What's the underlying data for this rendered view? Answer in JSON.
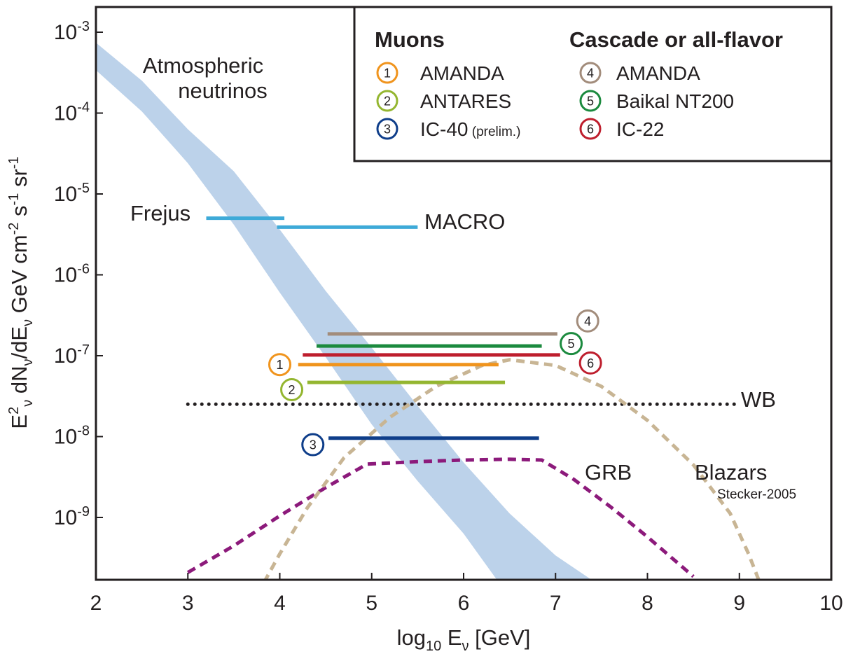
{
  "chart_data": {
    "type": "line",
    "xlabel": "log10 Eν [GeV]",
    "xlabel_parts": {
      "base": "log",
      "sub": "10",
      "mid": " E",
      "nu": "ν",
      "tail": " [GeV]"
    },
    "ylabel": "E²ν dNν/dEν GeV cm⁻² s⁻¹ sr⁻¹",
    "ylabel_parts": [
      "E",
      "2",
      "ν",
      " dN",
      "ν",
      "/dE",
      "ν",
      " GeV cm",
      "-2",
      " s",
      "-1",
      " sr",
      "-1"
    ],
    "xlim": [
      2,
      10
    ],
    "ylim_log10": [
      -9.8,
      -3
    ],
    "y_scale": "log",
    "grid": false,
    "x_ticks": [
      2,
      3,
      4,
      5,
      6,
      7,
      8,
      9,
      10
    ],
    "x_tick_labels": [
      "2",
      "3",
      "4",
      "5",
      "6",
      "7",
      "8",
      "9",
      "10"
    ],
    "y_ticks": [
      {
        "exp": -3,
        "base": "10",
        "sup": "-3"
      },
      {
        "exp": -4,
        "base": "10",
        "sup": "-4"
      },
      {
        "exp": -5,
        "base": "10",
        "sup": "-5"
      },
      {
        "exp": -6,
        "base": "10",
        "sup": "-6"
      },
      {
        "exp": -7,
        "base": "10",
        "sup": "-7"
      },
      {
        "exp": -8,
        "base": "10",
        "sup": "-8"
      },
      {
        "exp": -9,
        "base": "10",
        "sup": "-9"
      }
    ],
    "atmospheric_band": {
      "label_line1": "Atmospheric",
      "label_line2": "neutrinos",
      "color": "#bcd2ea",
      "upper": [
        [
          2,
          -3.13
        ],
        [
          2.5,
          -3.6
        ],
        [
          3,
          -4.2
        ],
        [
          3.5,
          -4.72
        ],
        [
          4,
          -5.44
        ],
        [
          4.5,
          -6.2
        ],
        [
          5,
          -6.9
        ],
        [
          5.5,
          -7.62
        ],
        [
          6,
          -8.32
        ],
        [
          6.5,
          -8.95
        ],
        [
          7,
          -9.47
        ],
        [
          7.43,
          -9.8
        ]
      ],
      "lower": [
        [
          6.38,
          -9.8
        ],
        [
          6,
          -9.2
        ],
        [
          5.5,
          -8.55
        ],
        [
          5,
          -7.85
        ],
        [
          4.5,
          -7.02
        ],
        [
          4,
          -6.22
        ],
        [
          3.5,
          -5.38
        ],
        [
          3,
          -4.62
        ],
        [
          2.5,
          -3.98
        ],
        [
          2,
          -3.47
        ]
      ]
    },
    "limits": [
      {
        "id": "frejus",
        "label": "Frejus",
        "x": [
          3.2,
          4.05
        ],
        "y_log10": -5.3,
        "color": "#3eaad8"
      },
      {
        "id": "macro",
        "label": "MACRO",
        "x": [
          3.97,
          5.5
        ],
        "y_log10": -5.41,
        "color": "#3eaad8"
      },
      {
        "id": "amanda-cascade",
        "marker": "4",
        "x": [
          4.52,
          7.02
        ],
        "y_log10": -6.73,
        "color": "#a28c7b"
      },
      {
        "id": "baikal",
        "marker": "5",
        "x": [
          4.4,
          6.85
        ],
        "y_log10": -6.88,
        "color": "#1b8a3e"
      },
      {
        "id": "ic22",
        "marker": "6",
        "x": [
          4.25,
          7.05
        ],
        "y_log10": -6.99,
        "color": "#be1e2d"
      },
      {
        "id": "amanda-muon",
        "marker": "1",
        "x": [
          4.2,
          6.38
        ],
        "y_log10": -7.11,
        "color": "#f0941d"
      },
      {
        "id": "antares",
        "marker": "2",
        "x": [
          4.3,
          6.45
        ],
        "y_log10": -7.33,
        "color": "#94b630"
      },
      {
        "id": "ic40",
        "marker": "3",
        "x": [
          4.53,
          6.82
        ],
        "y_log10": -8.02,
        "color": "#0f3e8a"
      }
    ],
    "circle_markers": [
      {
        "num": "1",
        "x": 4.0,
        "y_log10": -7.11,
        "color": "#f0941d"
      },
      {
        "num": "2",
        "x": 4.13,
        "y_log10": -7.42,
        "color": "#94b630"
      },
      {
        "num": "3",
        "x": 4.36,
        "y_log10": -8.1,
        "color": "#0f3e8a"
      },
      {
        "num": "4",
        "x": 7.35,
        "y_log10": -6.57,
        "color": "#a28c7b"
      },
      {
        "num": "5",
        "x": 7.17,
        "y_log10": -6.85,
        "color": "#1b8a3e"
      },
      {
        "num": "6",
        "x": 7.38,
        "y_log10": -7.09,
        "color": "#be1e2d"
      }
    ],
    "models": [
      {
        "id": "wb",
        "label": "WB",
        "style": "dotted",
        "color": "#231f20",
        "points": [
          [
            3,
            -7.6
          ],
          [
            9,
            -7.6
          ]
        ]
      },
      {
        "id": "grb",
        "label": "GRB",
        "style": "dashed",
        "color": "#8c1a7b",
        "points": [
          [
            3.0,
            -9.68
          ],
          [
            3.5,
            -9.35
          ],
          [
            4.0,
            -8.98
          ],
          [
            4.5,
            -8.63
          ],
          [
            4.95,
            -8.34
          ],
          [
            5.5,
            -8.31
          ],
          [
            6.0,
            -8.29
          ],
          [
            6.5,
            -8.28
          ],
          [
            6.85,
            -8.29
          ],
          [
            7.2,
            -8.53
          ],
          [
            7.6,
            -8.87
          ],
          [
            8.0,
            -9.24
          ],
          [
            8.5,
            -9.73
          ]
        ]
      },
      {
        "id": "blazars",
        "label": "Blazars",
        "note": "Stecker-2005",
        "style": "dashed",
        "color": "#c8b594",
        "points": [
          [
            3.83,
            -9.8
          ],
          [
            4.0,
            -9.45
          ],
          [
            4.3,
            -8.88
          ],
          [
            4.7,
            -8.26
          ],
          [
            5.2,
            -7.76
          ],
          [
            5.7,
            -7.38
          ],
          [
            6.2,
            -7.12
          ],
          [
            6.5,
            -7.05
          ],
          [
            7.0,
            -7.12
          ],
          [
            7.5,
            -7.38
          ],
          [
            8.0,
            -7.8
          ],
          [
            8.5,
            -8.35
          ],
          [
            8.9,
            -8.95
          ],
          [
            9.1,
            -9.45
          ],
          [
            9.22,
            -9.8
          ]
        ]
      }
    ],
    "legend": {
      "position": "top-right",
      "muons_title": "Muons",
      "cascade_title": "Cascade or all-flavor",
      "muons": [
        {
          "num": "1",
          "label": "AMANDA",
          "color": "#f0941d"
        },
        {
          "num": "2",
          "label": "ANTARES",
          "color": "#94b630"
        },
        {
          "num": "3",
          "label": "IC-40",
          "note": "(prelim.)",
          "color": "#0f3e8a"
        }
      ],
      "cascade": [
        {
          "num": "4",
          "label": "AMANDA",
          "color": "#a28c7b"
        },
        {
          "num": "5",
          "label": "Baikal NT200",
          "color": "#1b8a3e"
        },
        {
          "num": "6",
          "label": "IC-22",
          "color": "#be1e2d"
        }
      ]
    }
  }
}
